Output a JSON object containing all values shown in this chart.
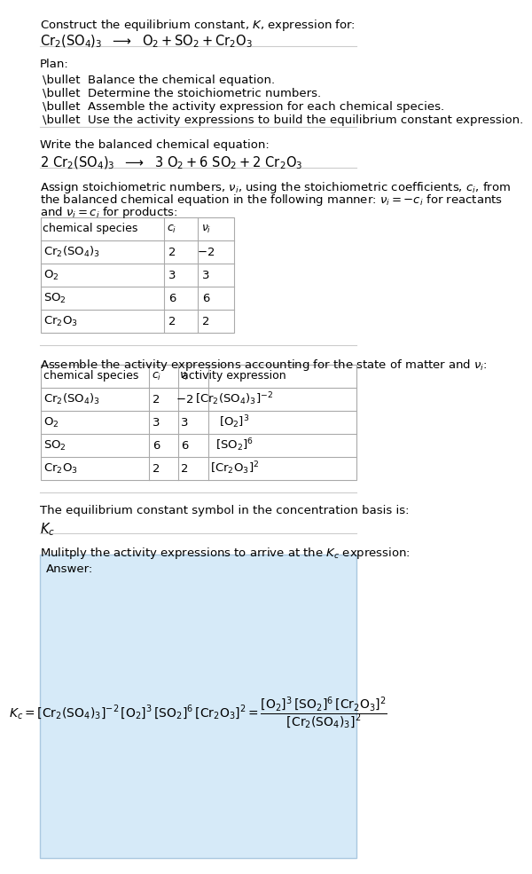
{
  "title_line1": "Construct the equilibrium constant, $K$, expression for:",
  "title_line2": "$\\mathrm{Cr_2(SO_4)_3}$  $\\longrightarrow$  $\\mathrm{O_2 + SO_2 + Cr_2O_3}$",
  "section_plan_header": "Plan:",
  "plan_items": [
    "\\bullet  Balance the chemical equation.",
    "\\bullet  Determine the stoichiometric numbers.",
    "\\bullet  Assemble the activity expression for each chemical species.",
    "\\bullet  Use the activity expressions to build the equilibrium constant expression."
  ],
  "balanced_eq_header": "Write the balanced chemical equation:",
  "balanced_eq": "$2\\ \\mathrm{Cr_2(SO_4)_3}$  $\\longrightarrow$  $3\\ \\mathrm{O_2} + 6\\ \\mathrm{SO_2} + 2\\ \\mathrm{Cr_2O_3}$",
  "stoich_header": "Assign stoichiometric numbers, $\\nu_i$, using the stoichiometric coefficients, $c_i$, from\\nthe balanced chemical equation in the following manner: $\\nu_i = -c_i$ for reactants\\nand $\\nu_i = c_i$ for products:",
  "table1_headers": [
    "chemical species",
    "$c_i$",
    "$\\nu_i$"
  ],
  "table1_rows": [
    [
      "$\\mathrm{Cr_2(SO_4)_3}$",
      "2",
      "$-2$"
    ],
    [
      "$\\mathrm{O_2}$",
      "3",
      "3"
    ],
    [
      "$\\mathrm{SO_2}$",
      "6",
      "6"
    ],
    [
      "$\\mathrm{Cr_2O_3}$",
      "2",
      "2"
    ]
  ],
  "activity_header": "Assemble the activity expressions accounting for the state of matter and $\\nu_i$:",
  "table2_headers": [
    "chemical species",
    "$c_i$",
    "$\\nu_i$",
    "activity expression"
  ],
  "table2_rows": [
    [
      "$\\mathrm{Cr_2(SO_4)_3}$",
      "2",
      "$-2$",
      "$[\\mathrm{Cr_2(SO_4)_3}]^{-2}$"
    ],
    [
      "$\\mathrm{O_2}$",
      "3",
      "3",
      "$[\\mathrm{O_2}]^3$"
    ],
    [
      "$\\mathrm{SO_2}$",
      "6",
      "6",
      "$[\\mathrm{SO_2}]^6$"
    ],
    [
      "$\\mathrm{Cr_2O_3}$",
      "2",
      "2",
      "$[\\mathrm{Cr_2O_3}]^2$"
    ]
  ],
  "kc_symbol_header": "The equilibrium constant symbol in the concentration basis is:",
  "kc_symbol": "$K_c$",
  "multiply_header": "Mulitply the activity expressions to arrive at the $K_c$ expression:",
  "answer_label": "Answer:",
  "answer_line1": "$K_c = [\\mathrm{Cr_2(SO_4)_3}]^{-2}\\,[\\mathrm{O_2}]^3\\,[\\mathrm{SO_2}]^6\\,[\\mathrm{Cr_2O_3}]^2 = \\dfrac{[\\mathrm{O_2}]^3\\,[\\mathrm{SO_2}]^6\\,[\\mathrm{Cr_2O_3}]^2}{[\\mathrm{Cr_2(SO_4)_3}]^2}$",
  "bg_color": "#ffffff",
  "table_line_color": "#aaaaaa",
  "answer_box_color": "#d6eaf8",
  "text_color": "#000000",
  "font_size": 9.5
}
